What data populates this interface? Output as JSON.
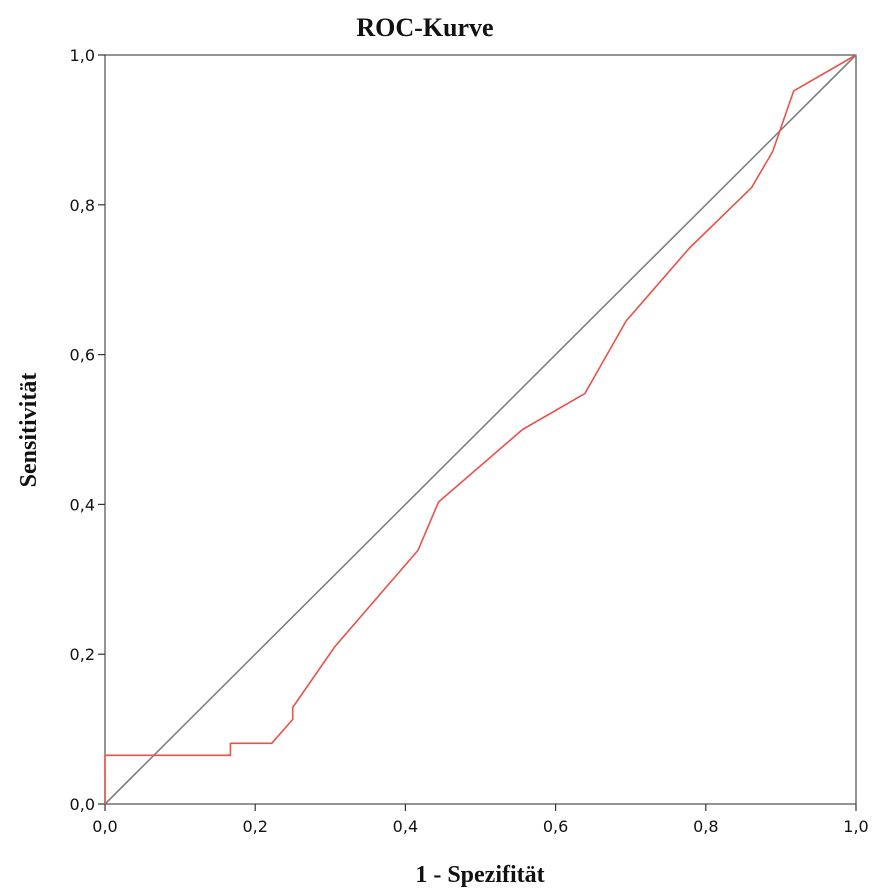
{
  "chart_data": {
    "type": "line",
    "title": "ROC-Kurve",
    "xlabel": "1 - Spezifität",
    "ylabel": "Sensitivität",
    "xlim": [
      0,
      1
    ],
    "ylim": [
      0,
      1
    ],
    "x_ticks": [
      "0,0",
      "0,2",
      "0,4",
      "0,6",
      "0,8",
      "1,0"
    ],
    "y_ticks": [
      "0,0",
      "0,2",
      "0,4",
      "0,6",
      "0,8",
      "1,0"
    ],
    "grid": false,
    "legend": "none",
    "series": [
      {
        "color": "#e8524a",
        "points": [
          [
            0.0,
            0.0
          ],
          [
            0.0,
            0.065
          ],
          [
            0.167,
            0.065
          ],
          [
            0.167,
            0.081
          ],
          [
            0.222,
            0.081
          ],
          [
            0.25,
            0.113
          ],
          [
            0.25,
            0.129
          ],
          [
            0.306,
            0.21
          ],
          [
            0.417,
            0.339
          ],
          [
            0.444,
            0.403
          ],
          [
            0.556,
            0.5
          ],
          [
            0.639,
            0.548
          ],
          [
            0.694,
            0.645
          ],
          [
            0.778,
            0.742
          ],
          [
            0.861,
            0.823
          ],
          [
            0.889,
            0.871
          ],
          [
            0.917,
            0.952
          ],
          [
            1.0,
            1.0
          ]
        ]
      },
      {
        "color": "#808080",
        "points": [
          [
            0,
            0
          ],
          [
            1,
            1
          ]
        ]
      }
    ]
  }
}
